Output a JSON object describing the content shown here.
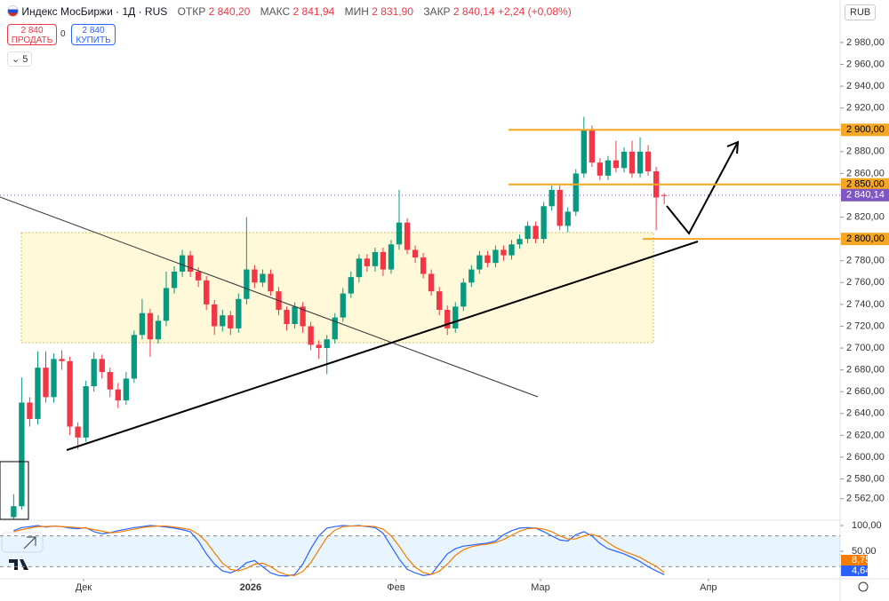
{
  "header": {
    "title": "Индекс МосБиржи · 1Д · RUS",
    "open_label": "ОТКР",
    "open": "2 840,20",
    "high_label": "МАКС",
    "high": "2 841,94",
    "low_label": "МИН",
    "low": "2 831,90",
    "close_label": "ЗАКР",
    "close": "2 840,14",
    "change": "+2,24 (+0,08%)",
    "sell_price": "2 840",
    "sell": "ПРОДАТЬ",
    "spread": "0",
    "buy_price": "2 840",
    "buy": "КУПИТЬ",
    "indicators": "5",
    "currency": "RUB"
  },
  "chart_data": [
    {
      "type": "candlestick",
      "up_color": "#089981",
      "down_color": "#f23645",
      "ohlc": [
        [
          2545,
          2566,
          2540,
          2555
        ],
        [
          2555,
          2673,
          2552,
          2650
        ],
        [
          2650,
          2655,
          2628,
          2635
        ],
        [
          2635,
          2697,
          2630,
          2682
        ],
        [
          2682,
          2697,
          2650,
          2655
        ],
        [
          2655,
          2695,
          2650,
          2690
        ],
        [
          2690,
          2698,
          2680,
          2688
        ],
        [
          2688,
          2692,
          2620,
          2628
        ],
        [
          2628,
          2632,
          2607,
          2618
        ],
        [
          2618,
          2670,
          2614,
          2665
        ],
        [
          2665,
          2696,
          2660,
          2690
        ],
        [
          2690,
          2694,
          2672,
          2678
        ],
        [
          2678,
          2682,
          2655,
          2662
        ],
        [
          2662,
          2668,
          2645,
          2652
        ],
        [
          2652,
          2678,
          2648,
          2672
        ],
        [
          2672,
          2716,
          2668,
          2712
        ],
        [
          2712,
          2745,
          2708,
          2732
        ],
        [
          2732,
          2736,
          2692,
          2708
        ],
        [
          2708,
          2730,
          2704,
          2725
        ],
        [
          2725,
          2770,
          2720,
          2755
        ],
        [
          2755,
          2775,
          2750,
          2770
        ],
        [
          2770,
          2790,
          2765,
          2785
        ],
        [
          2785,
          2789,
          2765,
          2770
        ],
        [
          2770,
          2774,
          2756,
          2762
        ],
        [
          2762,
          2766,
          2735,
          2740
        ],
        [
          2740,
          2744,
          2712,
          2720
        ],
        [
          2720,
          2735,
          2715,
          2730
        ],
        [
          2730,
          2734,
          2712,
          2718
        ],
        [
          2718,
          2750,
          2714,
          2745
        ],
        [
          2745,
          2820,
          2740,
          2772
        ],
        [
          2772,
          2776,
          2755,
          2760
        ],
        [
          2760,
          2772,
          2756,
          2768
        ],
        [
          2768,
          2772,
          2748,
          2752
        ],
        [
          2752,
          2756,
          2730,
          2735
        ],
        [
          2735,
          2738,
          2716,
          2722
        ],
        [
          2722,
          2742,
          2718,
          2738
        ],
        [
          2738,
          2742,
          2714,
          2720
        ],
        [
          2720,
          2724,
          2698,
          2703
        ],
        [
          2703,
          2707,
          2690,
          2700
        ],
        [
          2700,
          2712,
          2676,
          2708
        ],
        [
          2708,
          2732,
          2704,
          2728
        ],
        [
          2728,
          2755,
          2724,
          2750
        ],
        [
          2750,
          2770,
          2746,
          2765
        ],
        [
          2765,
          2786,
          2760,
          2782
        ],
        [
          2782,
          2786,
          2770,
          2775
        ],
        [
          2775,
          2792,
          2770,
          2788
        ],
        [
          2788,
          2792,
          2766,
          2772
        ],
        [
          2772,
          2799,
          2768,
          2795
        ],
        [
          2795,
          2845,
          2790,
          2815
        ],
        [
          2815,
          2819,
          2786,
          2790
        ],
        [
          2790,
          2794,
          2778,
          2783
        ],
        [
          2783,
          2787,
          2764,
          2768
        ],
        [
          2768,
          2772,
          2748,
          2752
        ],
        [
          2752,
          2756,
          2730,
          2735
        ],
        [
          2735,
          2739,
          2712,
          2718
        ],
        [
          2718,
          2742,
          2714,
          2738
        ],
        [
          2738,
          2764,
          2734,
          2760
        ],
        [
          2760,
          2776,
          2756,
          2772
        ],
        [
          2772,
          2789,
          2768,
          2785
        ],
        [
          2785,
          2789,
          2774,
          2778
        ],
        [
          2778,
          2794,
          2774,
          2790
        ],
        [
          2790,
          2794,
          2780,
          2785
        ],
        [
          2785,
          2799,
          2781,
          2795
        ],
        [
          2795,
          2804,
          2791,
          2800
        ],
        [
          2800,
          2816,
          2796,
          2812
        ],
        [
          2812,
          2816,
          2796,
          2800
        ],
        [
          2800,
          2834,
          2796,
          2830
        ],
        [
          2830,
          2849,
          2826,
          2845
        ],
        [
          2845,
          2849,
          2808,
          2812
        ],
        [
          2812,
          2829,
          2806,
          2825
        ],
        [
          2825,
          2864,
          2821,
          2860
        ],
        [
          2860,
          2912,
          2856,
          2900
        ],
        [
          2900,
          2904,
          2866,
          2870
        ],
        [
          2870,
          2874,
          2854,
          2858
        ],
        [
          2858,
          2876,
          2854,
          2872
        ],
        [
          2872,
          2890,
          2861,
          2865
        ],
        [
          2865,
          2884,
          2861,
          2880
        ],
        [
          2880,
          2890,
          2856,
          2860
        ],
        [
          2860,
          2893,
          2856,
          2880
        ],
        [
          2880,
          2886,
          2858,
          2862
        ],
        [
          2862,
          2866,
          2808,
          2838
        ],
        [
          2840.2,
          2841.94,
          2831.9,
          2840.14
        ]
      ],
      "xlim": [
        -1.7,
        102.9
      ],
      "xticks": [
        {
          "value": 8.7,
          "label": "Дек"
        },
        {
          "value": 29.5,
          "label": "2026"
        },
        {
          "value": 47.6,
          "label": "Фев"
        },
        {
          "value": 65.6,
          "label": "Мар"
        },
        {
          "value": 86.5,
          "label": "Апр"
        }
      ],
      "ylim": [
        2543,
        3019
      ],
      "yticks": [
        {
          "value": 2980,
          "label": "2 980,00"
        },
        {
          "value": 2960,
          "label": "2 960,00"
        },
        {
          "value": 2940,
          "label": "2 940,00"
        },
        {
          "value": 2920,
          "label": "2 920,00"
        },
        {
          "value": 2880,
          "label": "2 880,00"
        },
        {
          "value": 2860,
          "label": "2 860,00"
        },
        {
          "value": 2820,
          "label": "2 820,00"
        },
        {
          "value": 2780,
          "label": "2 780,00"
        },
        {
          "value": 2760,
          "label": "2 760,00"
        },
        {
          "value": 2740,
          "label": "2 740,00"
        },
        {
          "value": 2720,
          "label": "2 720,00"
        },
        {
          "value": 2700,
          "label": "2 700,00"
        },
        {
          "value": 2680,
          "label": "2 680,00"
        },
        {
          "value": 2660,
          "label": "2 660,00"
        },
        {
          "value": 2640,
          "label": "2 640,00"
        },
        {
          "value": 2620,
          "label": "2 620,00"
        },
        {
          "value": 2600,
          "label": "2 600,00"
        },
        {
          "value": 2580,
          "label": "2 580,00"
        },
        {
          "value": 2562,
          "label": "2 562,00"
        }
      ],
      "levels": [
        {
          "value": 2900,
          "label": "2 900,00"
        },
        {
          "value": 2850,
          "label": "2 850,00"
        },
        {
          "value": 2800,
          "label": "2 800,00"
        }
      ],
      "level_color": "#f5a623",
      "last_price": {
        "value": 2840.14,
        "label": "2 840,14"
      },
      "last_price_color": "#7e57c2"
    },
    {
      "type": "line",
      "ylim": [
        0,
        100
      ],
      "yticks": [
        {
          "value": 100,
          "label": "100,00"
        },
        {
          "value": 50,
          "label": "50,00"
        }
      ],
      "band": [
        20,
        80
      ],
      "xlim": [
        -1.7,
        102.9
      ],
      "series": [
        {
          "color": "#2962ff",
          "last_label": "4,64",
          "values": [
            90,
            96,
            98,
            100,
            97,
            99,
            98,
            95,
            94,
            96,
            88,
            84,
            86,
            90,
            93,
            96,
            98,
            100,
            99,
            97,
            95,
            92,
            88,
            70,
            45,
            25,
            12,
            8,
            15,
            28,
            32,
            20,
            8,
            3,
            2,
            5,
            25,
            55,
            80,
            95,
            98,
            100,
            99,
            100,
            98,
            96,
            85,
            60,
            35,
            15,
            8,
            3,
            5,
            25,
            45,
            55,
            60,
            62,
            64,
            66,
            70,
            82,
            90,
            95,
            96,
            95,
            88,
            80,
            72,
            70,
            82,
            88,
            80,
            65,
            55,
            50,
            45,
            38,
            30,
            20,
            12,
            4.64
          ]
        },
        {
          "color": "#f57c00",
          "last_label": "8,75",
          "values": [
            88,
            92,
            95,
            98,
            98,
            99,
            98,
            97,
            96,
            95,
            92,
            89,
            86,
            87,
            90,
            93,
            96,
            98,
            99,
            99,
            97,
            95,
            92,
            83,
            68,
            47,
            27,
            15,
            12,
            17,
            25,
            27,
            20,
            10,
            4,
            3,
            11,
            28,
            53,
            77,
            91,
            98,
            99,
            99,
            99,
            98,
            93,
            80,
            60,
            37,
            19,
            9,
            5,
            11,
            25,
            42,
            53,
            59,
            62,
            64,
            67,
            73,
            81,
            89,
            94,
            95,
            93,
            88,
            80,
            74,
            74,
            80,
            83,
            78,
            67,
            57,
            50,
            44,
            38,
            29,
            21,
            8.75
          ]
        }
      ]
    }
  ]
}
